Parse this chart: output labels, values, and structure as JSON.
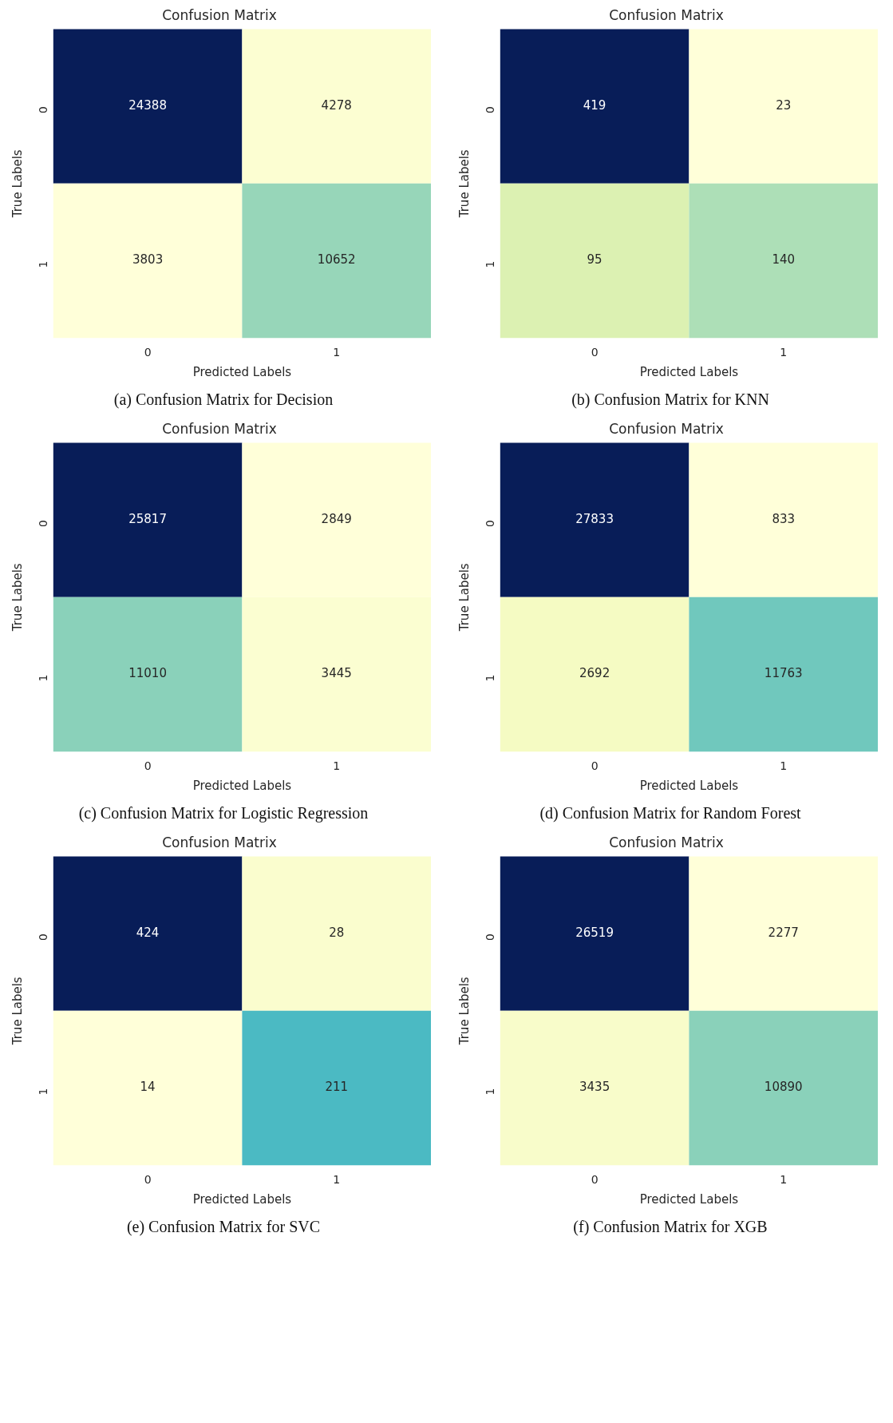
{
  "chart_data": [
    {
      "type": "heatmap",
      "title": "Confusion Matrix",
      "xlabel": "Predicted Labels",
      "ylabel": "True Labels",
      "categories": [
        "0",
        "1"
      ],
      "y_categories": [
        "0",
        "1"
      ],
      "cells": [
        [
          24388,
          4278
        ],
        [
          3803,
          10652
        ]
      ],
      "data_labels": true,
      "annotations": [
        "(a) Confusion Matrix for Decision"
      ]
    },
    {
      "type": "heatmap",
      "title": "Confusion Matrix",
      "xlabel": "Predicted Labels",
      "ylabel": "True Labels",
      "categories": [
        "0",
        "1"
      ],
      "y_categories": [
        "0",
        "1"
      ],
      "cells": [
        [
          419,
          23
        ],
        [
          95,
          140
        ]
      ],
      "data_labels": true,
      "annotations": [
        "(b) Confusion Matrix for KNN"
      ]
    },
    {
      "type": "heatmap",
      "title": "Confusion Matrix",
      "xlabel": "Predicted Labels",
      "ylabel": "True Labels",
      "categories": [
        "0",
        "1"
      ],
      "y_categories": [
        "0",
        "1"
      ],
      "cells": [
        [
          25817,
          2849
        ],
        [
          11010,
          3445
        ]
      ],
      "data_labels": true,
      "annotations": [
        "(c) Confusion Matrix for Logistic Regression"
      ]
    },
    {
      "type": "heatmap",
      "title": "Confusion Matrix",
      "xlabel": "Predicted Labels",
      "ylabel": "True Labels",
      "categories": [
        "0",
        "1"
      ],
      "y_categories": [
        "0",
        "1"
      ],
      "cells": [
        [
          27833,
          833
        ],
        [
          2692,
          11763
        ]
      ],
      "data_labels": true,
      "annotations": [
        "(d) Confusion Matrix for Random Forest"
      ]
    },
    {
      "type": "heatmap",
      "title": "Confusion Matrix",
      "xlabel": "Predicted Labels",
      "ylabel": "True Labels",
      "categories": [
        "0",
        "1"
      ],
      "y_categories": [
        "0",
        "1"
      ],
      "cells": [
        [
          424,
          28
        ],
        [
          14,
          211
        ]
      ],
      "data_labels": true,
      "annotations": [
        "(e) Confusion Matrix for SVC"
      ]
    },
    {
      "type": "heatmap",
      "title": "Confusion Matrix",
      "xlabel": "Predicted Labels",
      "ylabel": "True Labels",
      "categories": [
        "0",
        "1"
      ],
      "y_categories": [
        "0",
        "1"
      ],
      "cells": [
        [
          26519,
          2277
        ],
        [
          3435,
          10890
        ]
      ],
      "data_labels": true,
      "annotations": [
        "(f) Confusion Matrix for XGB"
      ]
    }
  ]
}
